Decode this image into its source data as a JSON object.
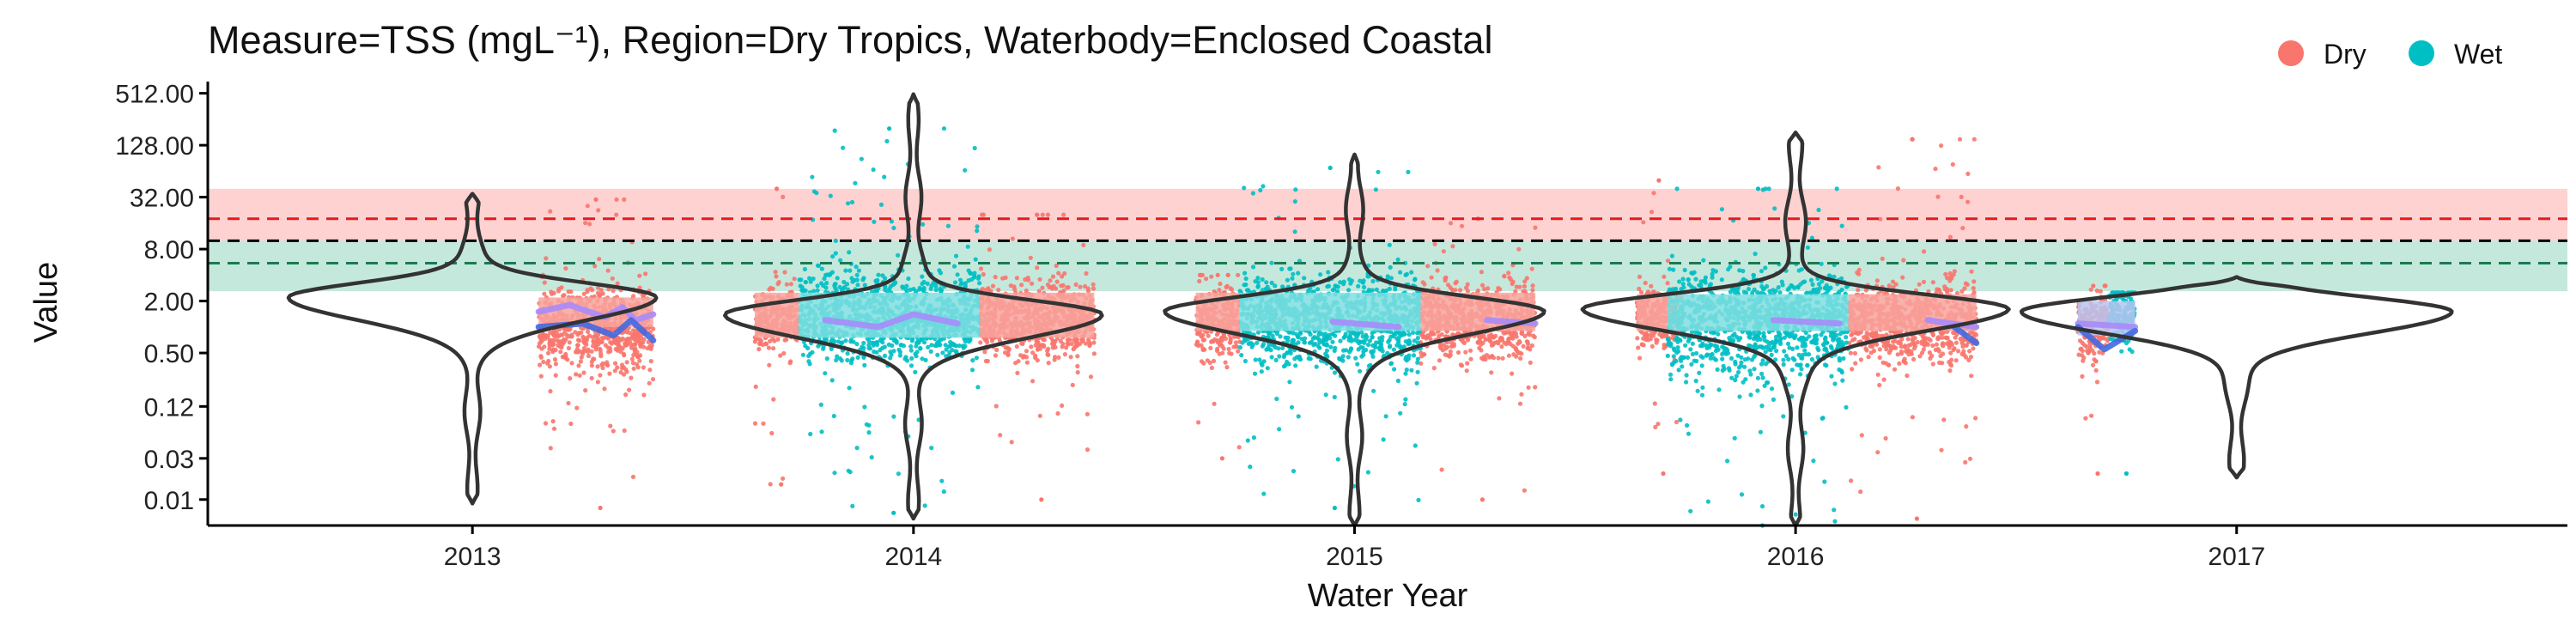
{
  "chart_data": {
    "type": "scatter",
    "title": "Measure=TSS (mgL⁻¹), Region=Dry Tropics, Waterbody=Enclosed Coastal",
    "xlabel": "Water Year",
    "ylabel": "Value",
    "y_scale": "log2",
    "ylim": [
      0.005,
      700
    ],
    "xlim": [
      2012.4,
      2017.75
    ],
    "x_ticks": [
      2013,
      2014,
      2015,
      2016,
      2017
    ],
    "x_tick_labels": [
      "2013",
      "2014",
      "2015",
      "2016",
      "2017"
    ],
    "y_ticks": [
      0.01,
      0.03,
      0.12,
      0.5,
      2,
      8,
      32,
      128,
      512
    ],
    "y_tick_labels": [
      "0.01",
      "0.03",
      "0.12",
      "0.50",
      "2.00",
      "8.00",
      "32.00",
      "128.00",
      "512.00"
    ],
    "legend": {
      "position": "top-right",
      "entries": [
        {
          "name": "Dry",
          "color": "#F8766D"
        },
        {
          "name": "Wet",
          "color": "#00BFC4"
        }
      ]
    },
    "grid": false,
    "reference_lines": [
      {
        "value": 18,
        "color": "#E41A1C",
        "style": "dashed"
      },
      {
        "value": 10,
        "color": "#000000",
        "style": "dashed"
      },
      {
        "value": 5.5,
        "color": "#1B7A52",
        "style": "dashed"
      }
    ],
    "reference_bands": [
      {
        "from": 10,
        "to": 40,
        "color": "#FF8A8A"
      },
      {
        "from": 2.6,
        "to": 10,
        "color": "#66C2A5"
      }
    ],
    "series": [
      {
        "name": "Dry",
        "color": "#F8766D",
        "clusters": [
          {
            "x_from": 2013.15,
            "x_to": 2013.41,
            "median": 1.0,
            "iqr": [
              0.45,
              2.2
            ],
            "min": 0.008,
            "max": 30
          },
          {
            "x_from": 2013.64,
            "x_to": 2013.74,
            "median": 1.2,
            "iqr": [
              0.7,
              2.4
            ],
            "min": 0.015,
            "max": 40
          },
          {
            "x_from": 2014.15,
            "x_to": 2014.41,
            "median": 1.2,
            "iqr": [
              0.6,
              2.6
            ],
            "min": 0.01,
            "max": 20
          },
          {
            "x_from": 2014.64,
            "x_to": 2014.74,
            "median": 1.1,
            "iqr": [
              0.6,
              2.2
            ],
            "min": 0.03,
            "max": 4
          },
          {
            "x_from": 2015.15,
            "x_to": 2015.41,
            "median": 1.2,
            "iqr": [
              0.6,
              2.6
            ],
            "min": 0.01,
            "max": 18
          },
          {
            "x_from": 2015.64,
            "x_to": 2015.74,
            "median": 1.3,
            "iqr": [
              0.7,
              2.4
            ],
            "min": 0.02,
            "max": 50
          },
          {
            "x_from": 2016.12,
            "x_to": 2016.41,
            "median": 1.1,
            "iqr": [
              0.5,
              2.4
            ],
            "min": 0.006,
            "max": 150
          },
          {
            "x_from": 2016.64,
            "x_to": 2016.71,
            "median": 1.0,
            "iqr": [
              0.5,
              1.8
            ],
            "min": 0.02,
            "max": 3
          }
        ]
      },
      {
        "name": "Wet",
        "color": "#00BFC4",
        "clusters": [
          {
            "x_from": 2013.74,
            "x_to": 2014.15,
            "median": 1.3,
            "iqr": [
              0.6,
              3.2
            ],
            "min": 0.007,
            "max": 200
          },
          {
            "x_from": 2014.74,
            "x_to": 2015.15,
            "median": 1.2,
            "iqr": [
              0.5,
              3.0
            ],
            "min": 0.008,
            "max": 70
          },
          {
            "x_from": 2015.71,
            "x_to": 2016.12,
            "median": 1.2,
            "iqr": [
              0.4,
              3.0
            ],
            "min": 0.005,
            "max": 40
          },
          {
            "x_from": 2016.71,
            "x_to": 2016.77,
            "median": 1.5,
            "iqr": [
              0.8,
              3.0
            ],
            "min": 0.02,
            "max": 2.5
          }
        ]
      }
    ],
    "rug_boxes": [
      {
        "x_from": 2013.15,
        "x_to": 2013.41,
        "y_from": 1.0,
        "y_to": 2.2,
        "color": "#F8A39C"
      },
      {
        "x_from": 2013.64,
        "x_to": 2013.74,
        "y_from": 0.75,
        "y_to": 2.5,
        "color": "#F8A39C"
      },
      {
        "x_from": 2013.74,
        "x_to": 2014.15,
        "y_from": 0.75,
        "y_to": 2.5,
        "color": "#7FDEE0"
      },
      {
        "x_from": 2014.15,
        "x_to": 2014.41,
        "y_from": 0.75,
        "y_to": 2.5,
        "color": "#F8A39C"
      },
      {
        "x_from": 2014.64,
        "x_to": 2014.74,
        "y_from": 0.9,
        "y_to": 2.5,
        "color": "#F8A39C"
      },
      {
        "x_from": 2014.74,
        "x_to": 2015.15,
        "y_from": 0.9,
        "y_to": 2.5,
        "color": "#7FDEE0"
      },
      {
        "x_from": 2015.15,
        "x_to": 2015.41,
        "y_from": 0.9,
        "y_to": 2.5,
        "color": "#F8A39C"
      },
      {
        "x_from": 2015.64,
        "x_to": 2015.71,
        "y_from": 0.9,
        "y_to": 2.4,
        "color": "#F8A39C"
      },
      {
        "x_from": 2015.71,
        "x_to": 2016.12,
        "y_from": 0.9,
        "y_to": 2.4,
        "color": "#7FDEE0"
      },
      {
        "x_from": 2016.12,
        "x_to": 2016.41,
        "y_from": 0.9,
        "y_to": 2.4,
        "color": "#F8A39C"
      },
      {
        "x_from": 2016.64,
        "x_to": 2016.77,
        "y_from": 0.8,
        "y_to": 2.0,
        "color": "#B8C4F0"
      }
    ],
    "smooth_lines": [
      {
        "color": "#A78BFA",
        "points": [
          [
            2013.15,
            1.5
          ],
          [
            2013.22,
            1.8
          ],
          [
            2013.3,
            1.3
          ],
          [
            2013.34,
            1.7
          ],
          [
            2013.37,
            1.2
          ],
          [
            2013.41,
            1.4
          ],
          [
            2013.64,
            1.05
          ],
          [
            2013.8,
            1.2
          ],
          [
            2013.92,
            1.0
          ],
          [
            2014.0,
            1.4
          ],
          [
            2014.1,
            1.1
          ],
          [
            2014.25,
            1.25
          ],
          [
            2014.41,
            1.0
          ],
          [
            2014.64,
            1.1
          ],
          [
            2014.8,
            1.0
          ],
          [
            2014.95,
            1.15
          ],
          [
            2015.1,
            1.0
          ],
          [
            2015.3,
            1.2
          ],
          [
            2015.41,
            1.1
          ],
          [
            2015.64,
            1.2
          ],
          [
            2015.8,
            1.0
          ],
          [
            2015.95,
            1.2
          ],
          [
            2016.1,
            1.1
          ],
          [
            2016.3,
            1.2
          ],
          [
            2016.41,
            1.0
          ],
          [
            2016.64,
            1.1
          ],
          [
            2016.77,
            1.0
          ]
        ]
      },
      {
        "color": "#4169E1",
        "points": [
          [
            2013.15,
            1.0
          ],
          [
            2013.25,
            1.1
          ],
          [
            2013.32,
            0.8
          ],
          [
            2013.36,
            1.2
          ],
          [
            2013.41,
            0.7
          ],
          [
            2013.64,
            0.9
          ],
          [
            2014.41,
            0.9
          ],
          [
            2016.36,
            1.0
          ],
          [
            2016.41,
            0.65
          ],
          [
            2016.64,
            1.0
          ],
          [
            2016.7,
            0.55
          ],
          [
            2016.77,
            0.9
          ]
        ]
      }
    ],
    "violins": [
      {
        "x": 2013,
        "median": 2.2,
        "min": 0.009,
        "max": 35,
        "max_half_width_years": 0.4
      },
      {
        "x": 2014,
        "median": 1.4,
        "min": 0.006,
        "max": 500,
        "max_half_width_years": 0.41
      },
      {
        "x": 2015,
        "median": 1.5,
        "min": 0.005,
        "max": 100,
        "max_half_width_years": 0.41
      },
      {
        "x": 2016,
        "median": 1.6,
        "min": 0.005,
        "max": 180,
        "max_half_width_years": 0.45
      },
      {
        "x": 2017,
        "median": 1.5,
        "min": 0.018,
        "max": 3.8,
        "max_half_width_years": 0.45
      }
    ]
  }
}
